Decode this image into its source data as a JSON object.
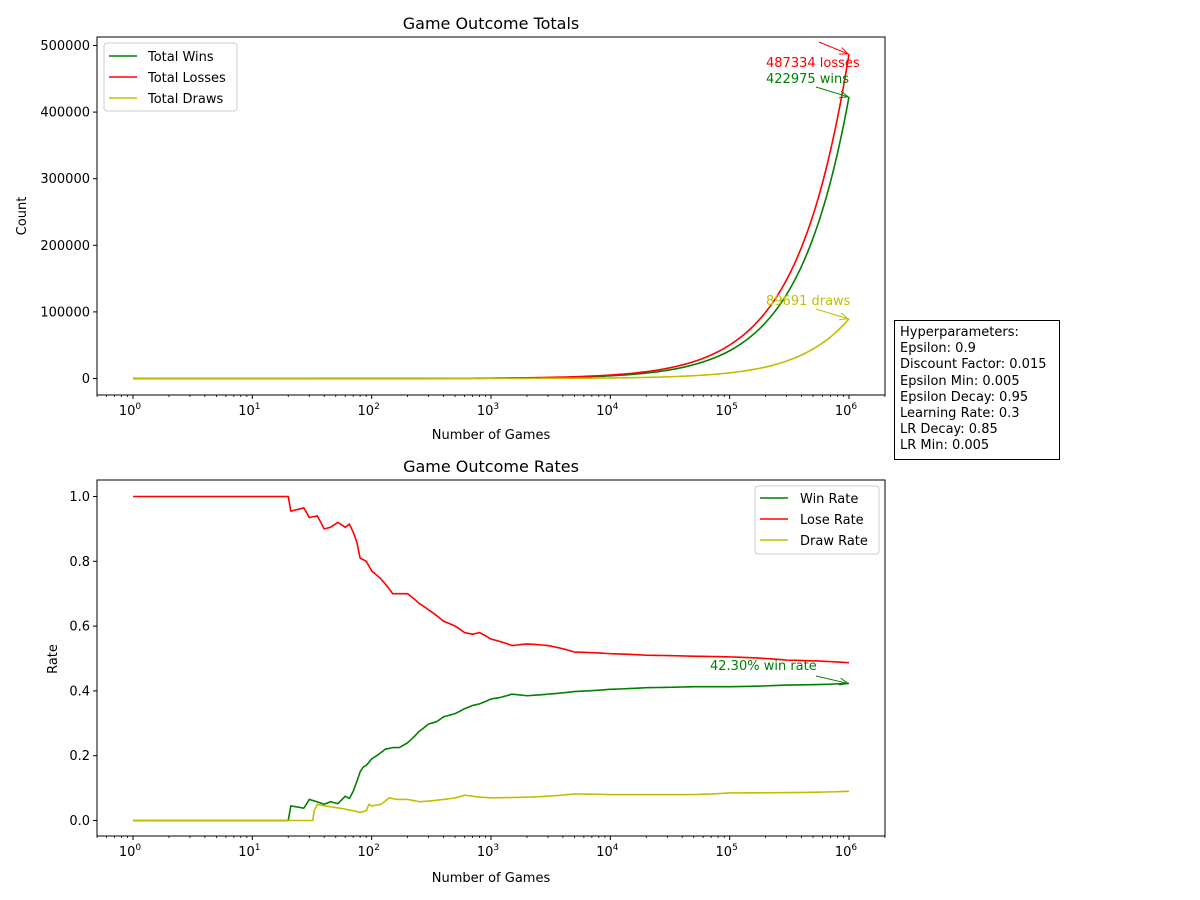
{
  "colors": {
    "wins": "#008000",
    "losses": "#ff0000",
    "draws": "#bfbf00"
  },
  "hyperparameters": {
    "title": "Hyperparameters:",
    "lines": [
      "Epsilon: 0.9",
      "Discount Factor: 0.015",
      "Epsilon Min: 0.005",
      "Epsilon Decay: 0.95",
      "Learning Rate: 0.3",
      "LR Decay: 0.85",
      "LR Min: 0.005"
    ]
  },
  "chart_data": [
    {
      "type": "line",
      "title": "Game Outcome Totals",
      "xlabel": "Number of Games",
      "ylabel": "Count",
      "xscale": "log",
      "xlim": [
        1,
        1000000
      ],
      "ylim": [
        0,
        500000
      ],
      "xticks": [
        1,
        10,
        100,
        1000,
        10000,
        100000,
        1000000
      ],
      "yticks": [
        0,
        100000,
        200000,
        300000,
        400000,
        500000
      ],
      "ytick_labels": [
        "0",
        "100000",
        "200000",
        "300000",
        "400000",
        "500000"
      ],
      "legend_position": "top-left",
      "grid": false,
      "x": [
        1,
        10,
        100,
        1000,
        3000,
        10000,
        30000,
        100000,
        200000,
        400000,
        700000,
        1000000
      ],
      "series": [
        {
          "name": "Total Wins",
          "color": "#008000",
          "values": [
            0,
            3,
            35,
            383,
            1180,
            4020,
            12300,
            41700,
            84000,
            168500,
            295500,
            422975
          ]
        },
        {
          "name": "Total Losses",
          "color": "#ff0000",
          "values": [
            1,
            7,
            56,
            560,
            1620,
            5200,
            15300,
            50300,
            99500,
            197000,
            342500,
            487334
          ]
        },
        {
          "name": "Total Draws",
          "color": "#bfbf00",
          "values": [
            0,
            0,
            9,
            65,
            240,
            810,
            2480,
            8500,
            17200,
            35300,
            62400,
            89691
          ]
        }
      ],
      "annotations": [
        {
          "text": "487334 losses",
          "color": "#ff0000",
          "x": 1000000,
          "y": 487334
        },
        {
          "text": "422975 wins",
          "color": "#008000",
          "x": 1000000,
          "y": 422975
        },
        {
          "text": "89691 draws",
          "color": "#bfbf00",
          "x": 1000000,
          "y": 89691
        }
      ]
    },
    {
      "type": "line",
      "title": "Game Outcome Rates",
      "xlabel": "Number of Games",
      "ylabel": "Rate",
      "xscale": "log",
      "xlim": [
        1,
        1000000
      ],
      "ylim": [
        0,
        1.0
      ],
      "xticks": [
        1,
        10,
        100,
        1000,
        10000,
        100000,
        1000000
      ],
      "yticks": [
        0,
        0.2,
        0.4,
        0.6,
        0.8,
        1.0
      ],
      "ytick_labels": [
        "0.0",
        "0.2",
        "0.4",
        "0.6",
        "0.8",
        "1.0"
      ],
      "legend_position": "top-right",
      "grid": false,
      "series": [
        {
          "name": "Win Rate",
          "color": "#008000",
          "x": [
            1,
            20,
            21,
            27,
            30,
            40,
            45,
            52,
            60,
            65,
            70,
            75,
            80,
            85,
            90,
            100,
            110,
            120,
            130,
            150,
            170,
            200,
            250,
            300,
            350,
            400,
            500,
            600,
            700,
            800,
            1000,
            1200,
            1500,
            2000,
            3000,
            5000,
            10000,
            20000,
            50000,
            100000,
            300000,
            1000000
          ],
          "values": [
            0.0,
            0.0,
            0.045,
            0.038,
            0.065,
            0.05,
            0.058,
            0.052,
            0.075,
            0.068,
            0.09,
            0.12,
            0.15,
            0.165,
            0.17,
            0.19,
            0.2,
            0.21,
            0.22,
            0.225,
            0.225,
            0.24,
            0.275,
            0.298,
            0.305,
            0.32,
            0.33,
            0.345,
            0.355,
            0.36,
            0.375,
            0.38,
            0.39,
            0.385,
            0.39,
            0.398,
            0.405,
            0.41,
            0.413,
            0.413,
            0.418,
            0.423
          ]
        },
        {
          "name": "Lose Rate",
          "color": "#ff0000",
          "x": [
            1,
            20,
            21,
            27,
            30,
            35,
            40,
            45,
            52,
            60,
            65,
            70,
            75,
            80,
            90,
            100,
            120,
            150,
            200,
            250,
            300,
            400,
            500,
            600,
            700,
            800,
            1000,
            1500,
            2000,
            3000,
            5000,
            10000,
            20000,
            50000,
            100000,
            300000,
            1000000
          ],
          "values": [
            1.0,
            1.0,
            0.955,
            0.965,
            0.935,
            0.94,
            0.9,
            0.905,
            0.92,
            0.905,
            0.915,
            0.89,
            0.86,
            0.81,
            0.8,
            0.77,
            0.745,
            0.7,
            0.7,
            0.67,
            0.65,
            0.615,
            0.6,
            0.58,
            0.575,
            0.58,
            0.56,
            0.54,
            0.545,
            0.54,
            0.52,
            0.515,
            0.51,
            0.507,
            0.505,
            0.495,
            0.487
          ]
        },
        {
          "name": "Draw Rate",
          "color": "#bfbf00",
          "x": [
            1,
            32,
            33,
            35,
            40,
            50,
            60,
            70,
            80,
            90,
            95,
            100,
            120,
            140,
            160,
            200,
            250,
            300,
            400,
            500,
            600,
            800,
            1000,
            2000,
            3000,
            5000,
            10000,
            50000,
            100000,
            1000000
          ],
          "values": [
            0.0,
            0.0,
            0.03,
            0.05,
            0.045,
            0.04,
            0.035,
            0.03,
            0.025,
            0.03,
            0.05,
            0.045,
            0.05,
            0.07,
            0.065,
            0.065,
            0.058,
            0.06,
            0.065,
            0.07,
            0.078,
            0.072,
            0.07,
            0.072,
            0.075,
            0.082,
            0.08,
            0.08,
            0.085,
            0.09
          ]
        }
      ],
      "annotations": [
        {
          "text": "42.30% win rate",
          "color": "#008000",
          "x": 1000000,
          "y": 0.423
        }
      ]
    }
  ]
}
